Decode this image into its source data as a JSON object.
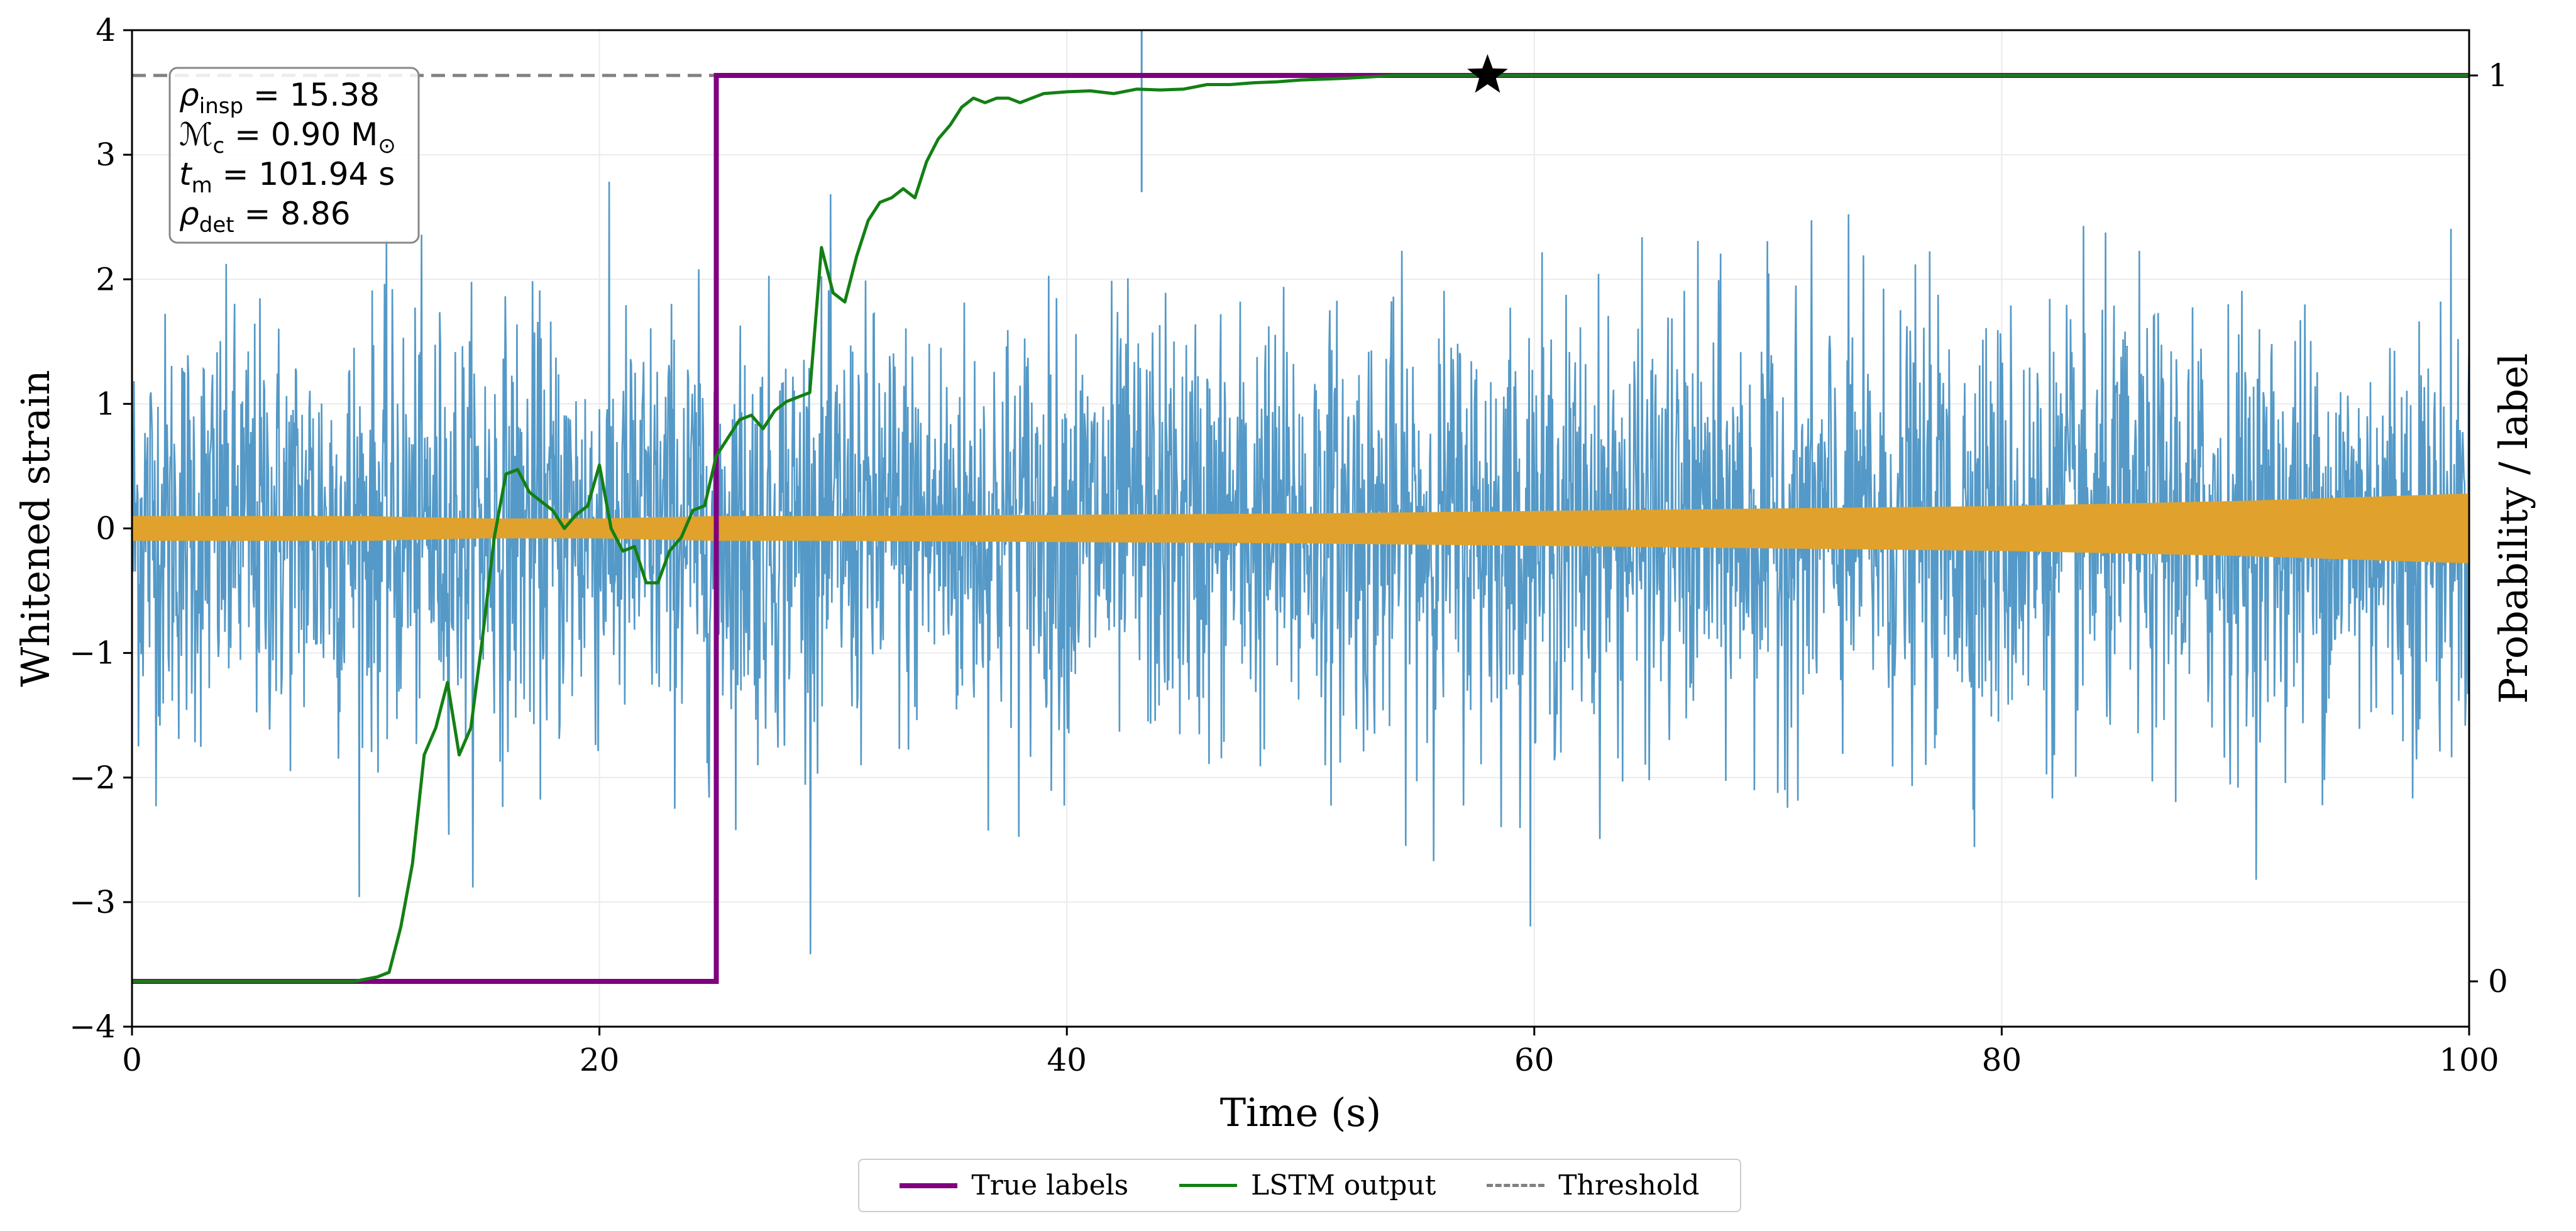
{
  "chart_data": {
    "type": "line",
    "xlabel": "Time (s)",
    "ylabel": "Whitened strain",
    "y2label": "Probability / label",
    "xlim": [
      0,
      100
    ],
    "ylim": [
      -4,
      4
    ],
    "y2lim": [
      -0.05,
      1.05
    ],
    "x_ticks": [
      "0",
      "20",
      "40",
      "60",
      "80",
      "100"
    ],
    "y_ticks": [
      "−4",
      "−3",
      "−2",
      "−1",
      "0",
      "1",
      "2",
      "3",
      "4"
    ],
    "y2_ticks": [
      "0",
      "1"
    ],
    "grid": true,
    "colors": {
      "strain": "#5499c7",
      "signal": "#e0a22c",
      "true_labels": "#800080",
      "lstm": "#138013",
      "threshold": "#808080",
      "marker": "#000000"
    },
    "annotation": {
      "lines": [
        {
          "sym": "ρ",
          "sub": "insp",
          "rest": " = 15.38"
        },
        {
          "sym": "ℳ",
          "sub": "c",
          "rest": " = 0.90 M",
          "sub2": "⊙"
        },
        {
          "sym": "t",
          "sub": "m",
          "rest": " = 101.94 s"
        },
        {
          "sym": "ρ",
          "sub": "det",
          "rest": " = 8.86"
        }
      ]
    },
    "series": [
      {
        "name": "True labels",
        "axis": "right",
        "x": [
          0,
          25,
          25,
          100
        ],
        "y": [
          0,
          0,
          1,
          1
        ]
      },
      {
        "name": "LSTM output",
        "axis": "right",
        "x": [
          0,
          9.5,
          10.5,
          11,
          11.5,
          12,
          12.5,
          13,
          13.5,
          14,
          14.5,
          15,
          15.5,
          16,
          16.5,
          17,
          17.5,
          18,
          18.5,
          19,
          19.5,
          20,
          20.5,
          21,
          21.5,
          22,
          22.5,
          23,
          23.5,
          24,
          24.5,
          25,
          25.5,
          26,
          26.5,
          27,
          27.5,
          28,
          28.5,
          29,
          29.5,
          30,
          30.5,
          31,
          31.5,
          32,
          32.5,
          33,
          33.5,
          34,
          34.5,
          35,
          35.5,
          36,
          36.5,
          37,
          37.5,
          38,
          38.5,
          39,
          40,
          41,
          42,
          43,
          44,
          45,
          46,
          47,
          48,
          49,
          50,
          52,
          54,
          56,
          58,
          60,
          65,
          70,
          80,
          90,
          100
        ],
        "y": [
          0,
          0,
          0.005,
          0.01,
          0.06,
          0.13,
          0.25,
          0.28,
          0.33,
          0.25,
          0.28,
          0.38,
          0.49,
          0.56,
          0.565,
          0.54,
          0.53,
          0.52,
          0.5,
          0.515,
          0.525,
          0.57,
          0.5,
          0.475,
          0.48,
          0.44,
          0.44,
          0.475,
          0.49,
          0.52,
          0.525,
          0.58,
          0.6,
          0.62,
          0.625,
          0.61,
          0.63,
          0.64,
          0.645,
          0.65,
          0.81,
          0.76,
          0.75,
          0.8,
          0.84,
          0.86,
          0.865,
          0.875,
          0.865,
          0.905,
          0.93,
          0.945,
          0.965,
          0.975,
          0.97,
          0.975,
          0.975,
          0.97,
          0.975,
          0.98,
          0.982,
          0.983,
          0.98,
          0.985,
          0.984,
          0.985,
          0.99,
          0.99,
          0.992,
          0.993,
          0.995,
          0.997,
          1,
          1,
          1,
          1,
          1,
          1,
          1,
          1,
          1
        ]
      },
      {
        "name": "Threshold",
        "axis": "right",
        "style": "dashed",
        "x": [
          0,
          100
        ],
        "y": [
          1,
          1
        ]
      },
      {
        "name": "Detection marker",
        "axis": "right",
        "marker": "star",
        "x": [
          58
        ],
        "y": [
          1
        ]
      },
      {
        "name": "Whitened strain",
        "axis": "left",
        "style": "noise",
        "amplitude_std": 0.85,
        "min": -3.45,
        "max": 3.65
      },
      {
        "name": "Injected signal",
        "axis": "left",
        "style": "band",
        "x": [
          0,
          5,
          10,
          15,
          20,
          25,
          30,
          40,
          50,
          60,
          70,
          80,
          90,
          95,
          100
        ],
        "envelope": [
          0.1,
          0.1,
          0.1,
          0.08,
          0.08,
          0.1,
          0.1,
          0.11,
          0.12,
          0.14,
          0.16,
          0.18,
          0.22,
          0.25,
          0.28
        ]
      }
    ],
    "legend": [
      {
        "label": "True labels",
        "color": "#800080",
        "style": "solid",
        "width": 8
      },
      {
        "label": "LSTM output",
        "color": "#138013",
        "style": "solid",
        "width": 5
      },
      {
        "label": "Threshold",
        "color": "#808080",
        "style": "dashed",
        "width": 5
      }
    ]
  }
}
